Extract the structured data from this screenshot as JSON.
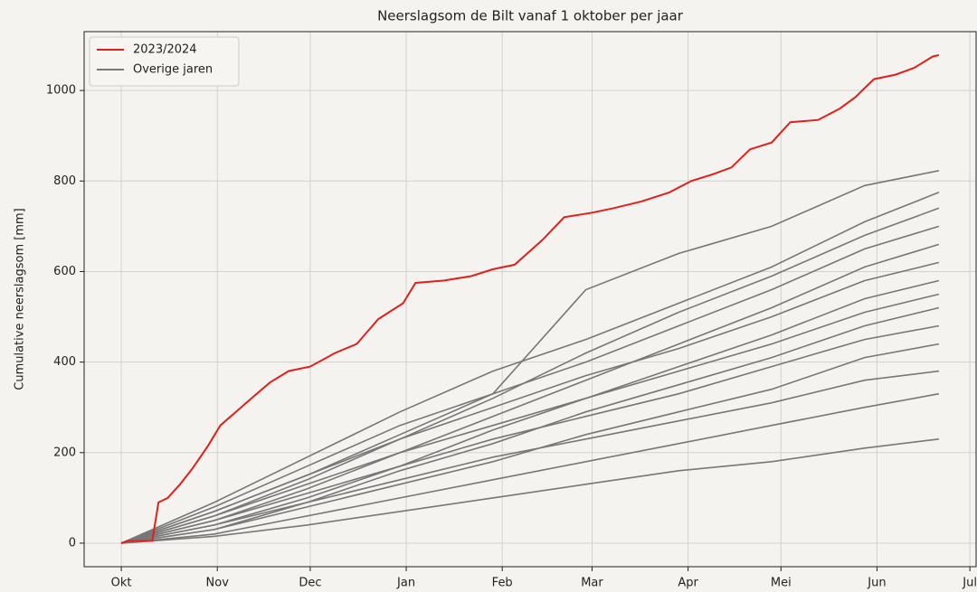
{
  "chart_data": {
    "type": "line",
    "title": "Neerslagsom de Bilt vanaf 1 oktober per jaar",
    "ylabel": "Cumulative neerslagsom [mm]",
    "xlim": [
      -12,
      276
    ],
    "ylim": [
      -52,
      1130
    ],
    "xticks": [
      {
        "value": 0,
        "label": "Okt"
      },
      {
        "value": 31,
        "label": "Nov"
      },
      {
        "value": 61,
        "label": "Dec"
      },
      {
        "value": 92,
        "label": "Jan"
      },
      {
        "value": 123,
        "label": "Feb"
      },
      {
        "value": 152,
        "label": "Mar"
      },
      {
        "value": 183,
        "label": "Apr"
      },
      {
        "value": 213,
        "label": "Mei"
      },
      {
        "value": 244,
        "label": "Jun"
      },
      {
        "value": 274,
        "label": "Jul"
      }
    ],
    "yticks": [
      0,
      200,
      400,
      600,
      800,
      1000
    ],
    "grid": true,
    "legend": "upper left",
    "series": [
      {
        "name": "Overige jaren",
        "color": "#777777",
        "x": [
          0,
          30,
          60,
          90,
          120,
          150,
          180,
          210,
          240,
          264
        ],
        "values": [
          0,
          70,
          150,
          240,
          330,
          560,
          640,
          700,
          790,
          823
        ]
      },
      {
        "color": "#777777",
        "x": [
          0,
          30,
          60,
          90,
          120,
          150,
          180,
          210,
          240,
          264
        ],
        "values": [
          0,
          90,
          190,
          290,
          380,
          450,
          530,
          610,
          710,
          775
        ]
      },
      {
        "color": "#777777",
        "x": [
          0,
          30,
          60,
          90,
          120,
          150,
          180,
          210,
          240,
          264
        ],
        "values": [
          0,
          60,
          140,
          230,
          320,
          420,
          510,
          590,
          680,
          740
        ]
      },
      {
        "color": "#777777",
        "x": [
          0,
          30,
          60,
          90,
          120,
          150,
          180,
          210,
          240,
          264
        ],
        "values": [
          0,
          80,
          170,
          260,
          330,
          400,
          480,
          560,
          650,
          700
        ]
      },
      {
        "color": "#777777",
        "x": [
          0,
          30,
          60,
          90,
          120,
          150,
          180,
          210,
          240,
          264
        ],
        "values": [
          0,
          50,
          120,
          200,
          280,
          360,
          440,
          520,
          610,
          660
        ]
      },
      {
        "color": "#777777",
        "x": [
          0,
          30,
          60,
          90,
          120,
          150,
          180,
          210,
          240,
          264
        ],
        "values": [
          0,
          70,
          150,
          230,
          300,
          370,
          430,
          500,
          580,
          620
        ]
      },
      {
        "color": "#777777",
        "x": [
          0,
          30,
          60,
          90,
          120,
          150,
          180,
          210,
          240,
          264
        ],
        "values": [
          0,
          40,
          100,
          170,
          250,
          320,
          390,
          460,
          540,
          580
        ]
      },
      {
        "color": "#777777",
        "x": [
          0,
          30,
          60,
          90,
          120,
          150,
          180,
          210,
          240,
          264
        ],
        "values": [
          0,
          60,
          130,
          200,
          260,
          320,
          380,
          440,
          510,
          550
        ]
      },
      {
        "color": "#777777",
        "x": [
          0,
          30,
          60,
          90,
          120,
          150,
          180,
          210,
          240,
          264
        ],
        "values": [
          0,
          30,
          90,
          160,
          220,
          290,
          350,
          410,
          480,
          520
        ]
      },
      {
        "color": "#777777",
        "x": [
          0,
          30,
          60,
          90,
          120,
          150,
          180,
          210,
          240,
          264
        ],
        "values": [
          0,
          50,
          110,
          170,
          230,
          280,
          330,
          390,
          450,
          480
        ]
      },
      {
        "color": "#777777",
        "x": [
          0,
          30,
          60,
          90,
          120,
          150,
          180,
          210,
          240,
          264
        ],
        "values": [
          0,
          30,
          80,
          130,
          180,
          240,
          290,
          340,
          410,
          440
        ]
      },
      {
        "color": "#777777",
        "x": [
          0,
          30,
          60,
          90,
          120,
          150,
          180,
          210,
          240,
          264
        ],
        "values": [
          0,
          40,
          90,
          140,
          190,
          230,
          270,
          310,
          360,
          380
        ]
      },
      {
        "color": "#777777",
        "x": [
          0,
          30,
          60,
          90,
          120,
          150,
          180,
          210,
          240,
          264
        ],
        "values": [
          0,
          20,
          60,
          100,
          140,
          180,
          220,
          260,
          300,
          330
        ]
      },
      {
        "color": "#777777",
        "x": [
          0,
          30,
          60,
          90,
          120,
          150,
          180,
          210,
          240,
          264
        ],
        "values": [
          0,
          15,
          40,
          70,
          100,
          130,
          160,
          180,
          210,
          230
        ]
      },
      {
        "name": "2023/2024",
        "color": "#e0201b",
        "x": [
          0,
          2,
          10,
          12,
          15,
          19,
          23,
          28,
          32,
          37,
          42,
          48,
          54,
          61,
          69,
          76,
          83,
          91,
          95,
          104,
          113,
          120,
          127,
          136,
          143,
          152,
          159,
          168,
          177,
          184,
          191,
          197,
          203,
          210,
          216,
          225,
          232,
          237,
          243,
          250,
          256,
          262,
          264
        ],
        "values": [
          0,
          5,
          5,
          90,
          100,
          130,
          165,
          215,
          260,
          290,
          320,
          355,
          380,
          390,
          420,
          440,
          495,
          530,
          575,
          580,
          590,
          605,
          615,
          670,
          720,
          730,
          740,
          755,
          775,
          800,
          815,
          830,
          870,
          885,
          930,
          935,
          960,
          985,
          1025,
          1035,
          1050,
          1075,
          1078
        ]
      }
    ]
  }
}
